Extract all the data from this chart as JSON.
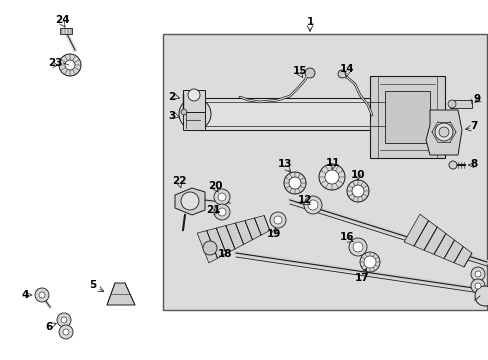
{
  "background_color": "#ffffff",
  "box_bg": "#dcdcdc",
  "box_edge": "#555555",
  "lc": "#1a1a1a",
  "fig_w": 4.89,
  "fig_h": 3.6,
  "dpi": 100
}
